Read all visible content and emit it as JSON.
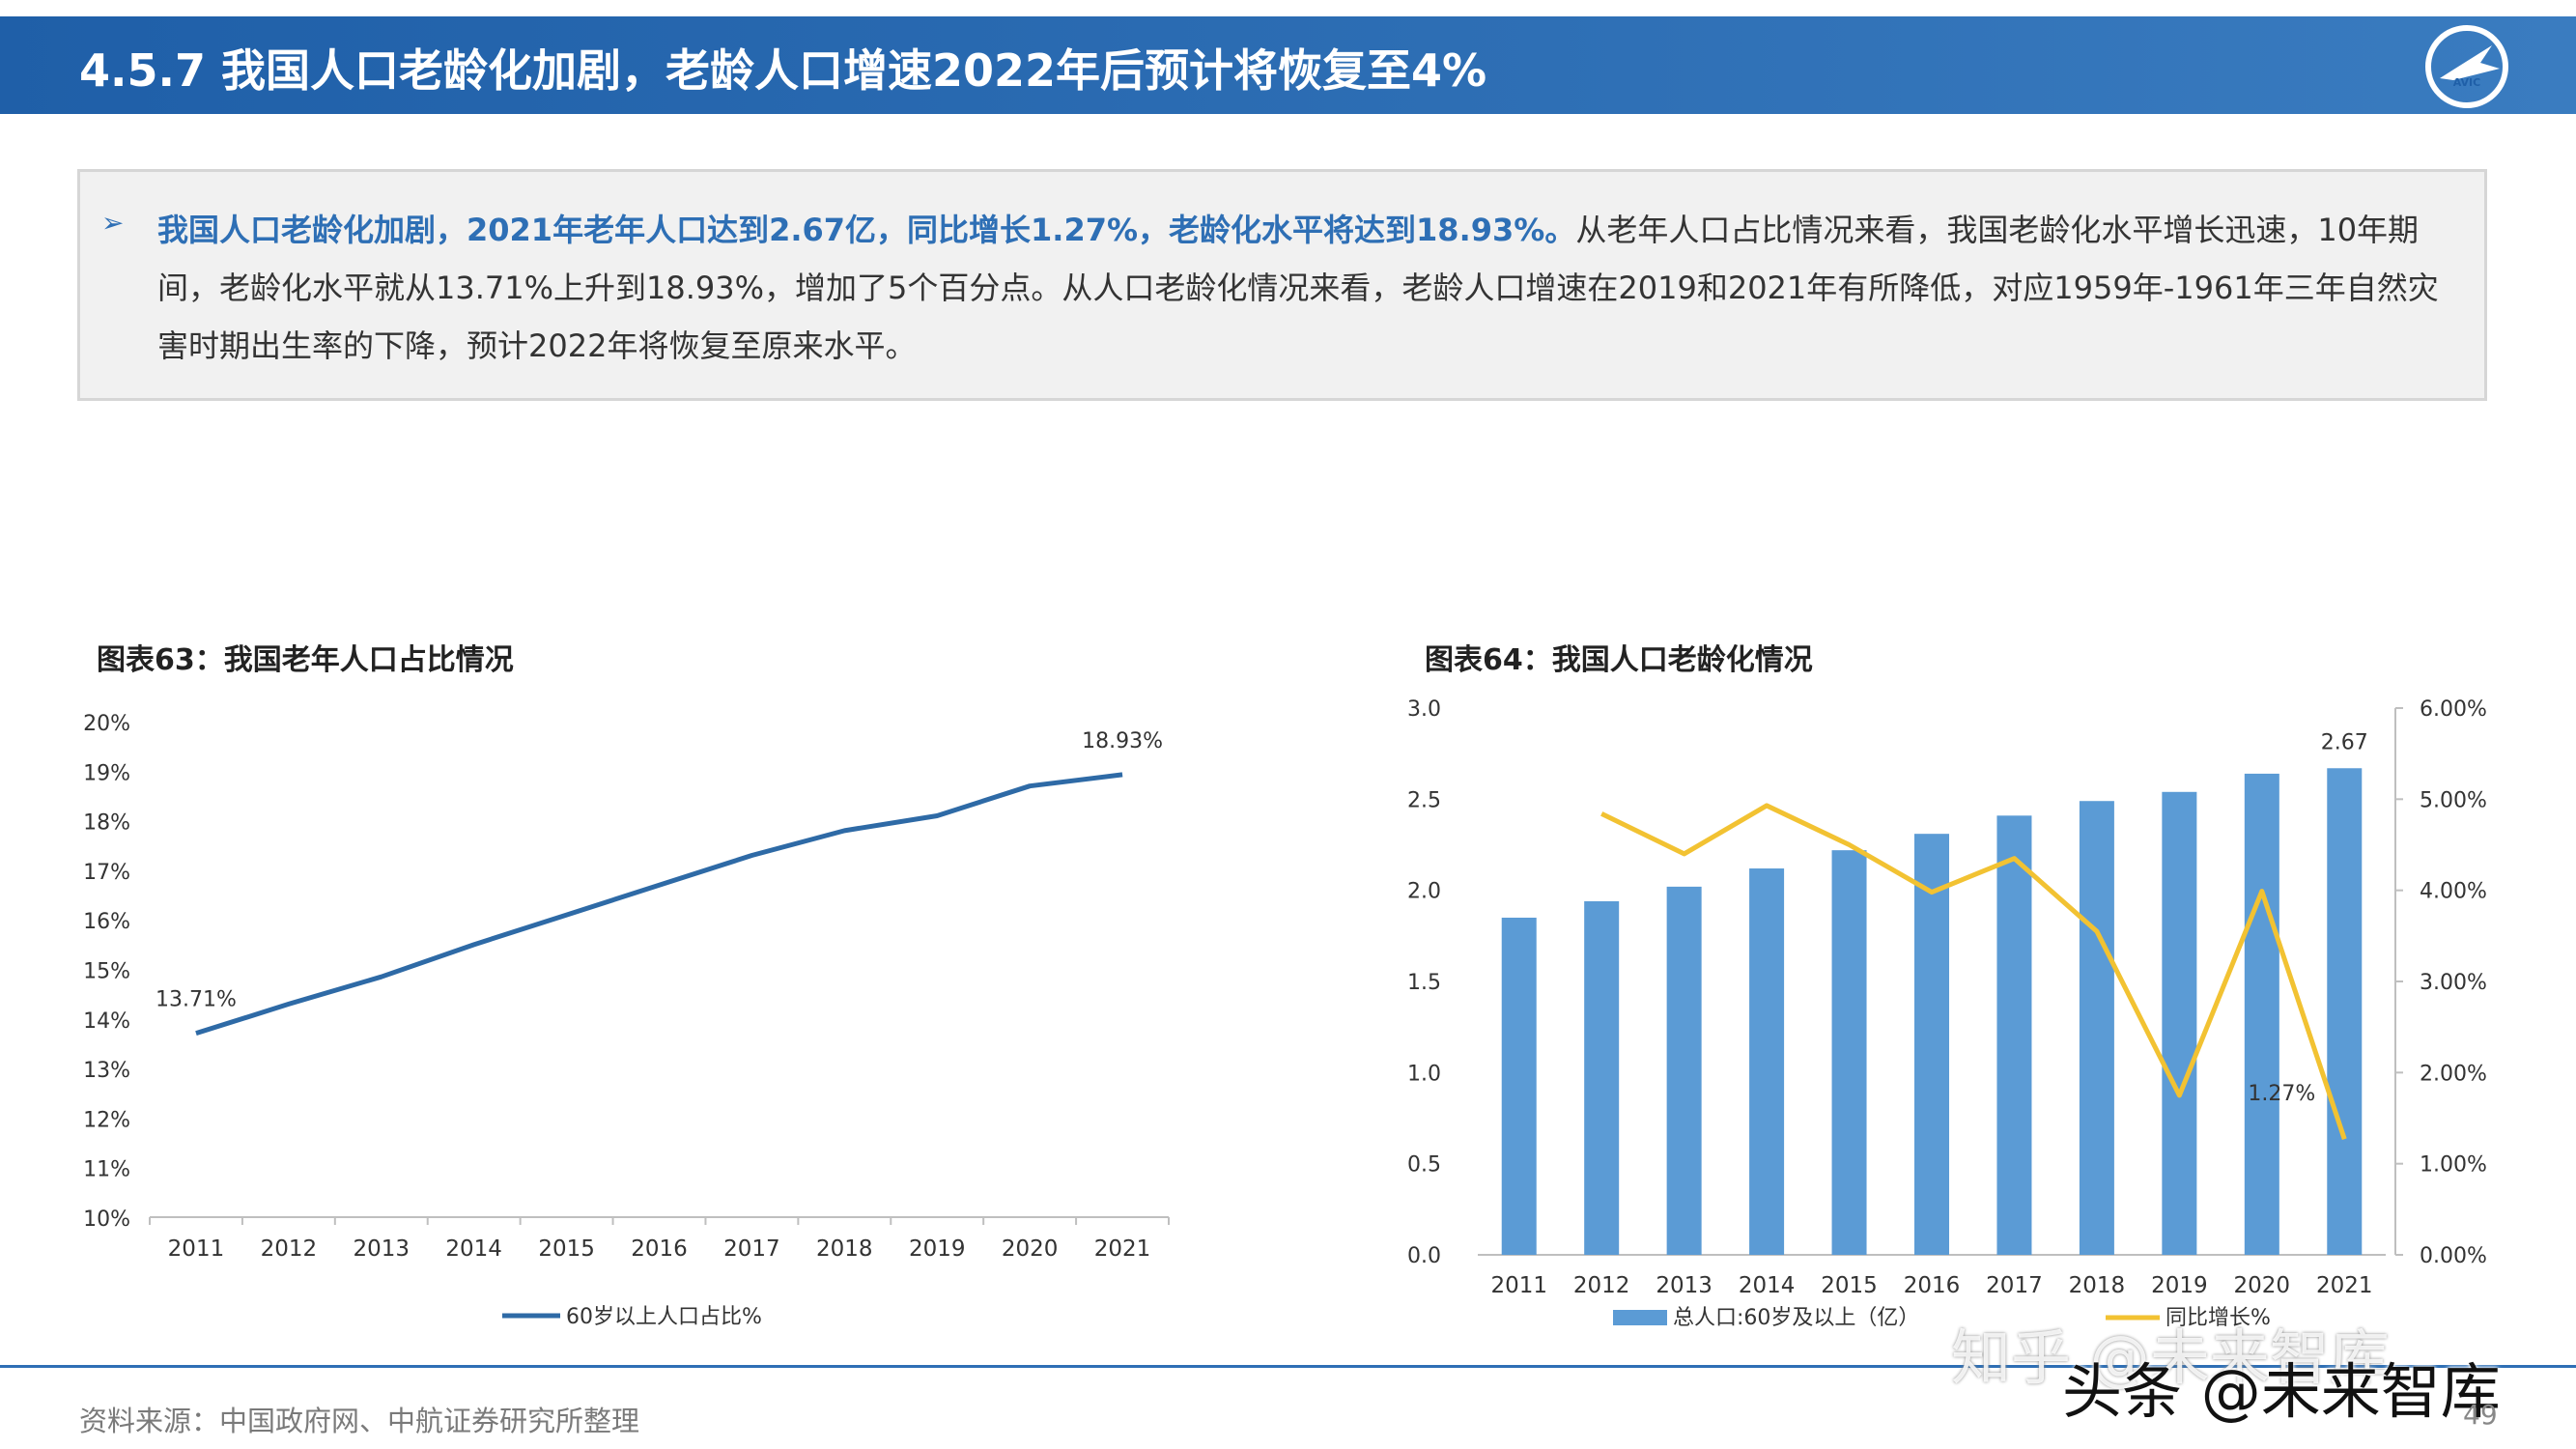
{
  "header": {
    "title": "4.5.7 我国人口老龄化加剧，老龄人口增速2022年后预计将恢复至4%",
    "logo_text": "AVIC"
  },
  "summary": {
    "bullet": "➢",
    "lead": "我国人口老龄化加剧，2021年老年人口达到2.67亿，同比增长1.27%，老龄化水平将达到18.93%。",
    "body": "从老年人口占比情况来看，我国老龄化水平增长迅速，10年期间，老龄化水平就从13.71%上升到18.93%，增加了5个百分点。从人口老龄化情况来看，老龄人口增速在2019和2021年有所降低，对应1959年-1961年三年自然灾害时期出生率的下降，预计2022年将恢复至原来水平。"
  },
  "chart_data": [
    {
      "type": "line",
      "title": "图表63：我国老年人口占比情况",
      "categories": [
        "2011",
        "2012",
        "2013",
        "2014",
        "2015",
        "2016",
        "2017",
        "2018",
        "2019",
        "2020",
        "2021"
      ],
      "series": [
        {
          "name": "60岁以上人口占比%",
          "values": [
            13.71,
            14.3,
            14.85,
            15.5,
            16.1,
            16.7,
            17.3,
            17.8,
            18.1,
            18.7,
            18.93
          ],
          "color": "#2e6aa6"
        }
      ],
      "y_ticks": [
        "10%",
        "11%",
        "12%",
        "13%",
        "14%",
        "15%",
        "16%",
        "17%",
        "18%",
        "19%",
        "20%"
      ],
      "ylim": [
        10,
        20
      ],
      "annotations": [
        "13.71%",
        "18.93%"
      ]
    },
    {
      "type": "bar",
      "title": "图表64：我国人口老龄化情况",
      "categories": [
        "2011",
        "2012",
        "2013",
        "2014",
        "2015",
        "2016",
        "2017",
        "2018",
        "2019",
        "2020",
        "2021"
      ],
      "series": [
        {
          "name": "总人口:60岁及以上（亿）",
          "type": "bar",
          "axis": "left",
          "values": [
            1.85,
            1.94,
            2.02,
            2.12,
            2.22,
            2.31,
            2.41,
            2.49,
            2.54,
            2.64,
            2.67
          ],
          "color": "#5b9bd5"
        },
        {
          "name": "同比增长%",
          "type": "line",
          "axis": "right",
          "values": [
            null,
            4.84,
            4.4,
            4.93,
            4.5,
            3.98,
            4.35,
            3.55,
            1.75,
            3.99,
            1.27
          ],
          "color": "#f2c232"
        }
      ],
      "y_ticks_left": [
        "0.0",
        "0.5",
        "1.0",
        "1.5",
        "2.0",
        "2.5",
        "3.0"
      ],
      "y_ticks_right": [
        "0.00%",
        "1.00%",
        "2.00%",
        "3.00%",
        "4.00%",
        "5.00%",
        "6.00%"
      ],
      "ylim_left": [
        0,
        3
      ],
      "ylim_right": [
        0,
        6
      ],
      "annotations": [
        "2.67",
        "1.27%"
      ]
    }
  ],
  "footer": {
    "source": "资料来源：中国政府网、中航证券研究所整理",
    "page": "49"
  },
  "watermarks": [
    "知乎 @未来智库",
    "头条 @未来智库"
  ]
}
